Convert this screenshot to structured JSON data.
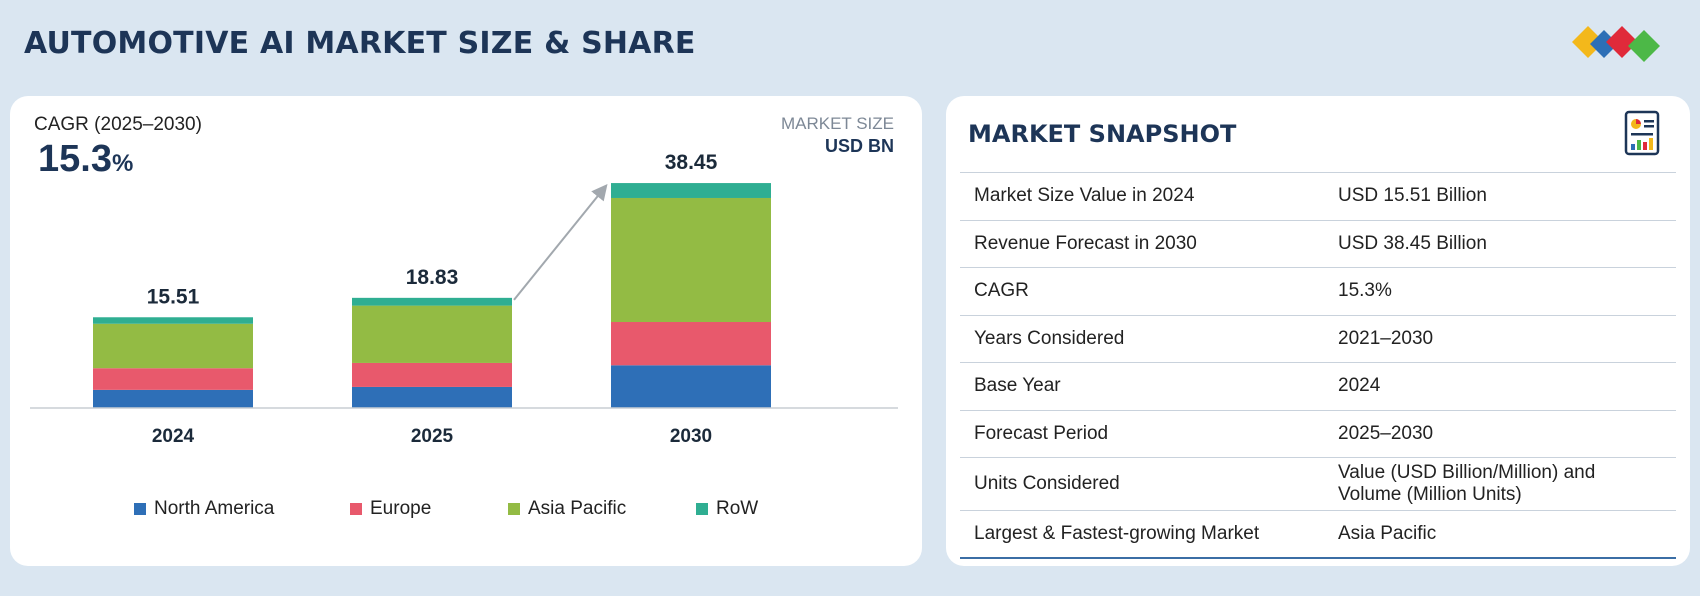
{
  "page": {
    "title": "AUTOMOTIVE AI MARKET SIZE & SHARE"
  },
  "colors": {
    "north_america": "#2e6fb7",
    "europe": "#e8596c",
    "asia_pacific": "#93bb44",
    "row": "#2fae92",
    "title": "#1d3557"
  },
  "header_left": {
    "cagr_label": "CAGR (2025–2030)",
    "cagr_number": "15.3",
    "cagr_pct": "%"
  },
  "header_right": {
    "label": "MARKET SIZE",
    "unit": "USD BN"
  },
  "chart_data": {
    "type": "bar",
    "stacked": true,
    "categories": [
      "2024",
      "2025",
      "2030"
    ],
    "totals": [
      15.51,
      18.83,
      38.45
    ],
    "total_labels": [
      "15.51",
      "18.83",
      "38.45"
    ],
    "series": [
      {
        "name": "North America",
        "values": [
          3.1,
          3.6,
          7.3
        ]
      },
      {
        "name": "Europe",
        "values": [
          3.7,
          4.1,
          7.4
        ]
      },
      {
        "name": "Asia Pacific",
        "values": [
          7.6,
          9.8,
          21.2
        ]
      },
      {
        "name": "RoW",
        "values": [
          1.11,
          1.33,
          2.55
        ]
      }
    ],
    "ylim": [
      0,
      40
    ],
    "grid": false,
    "legend": "bottom",
    "annotations": [
      "growth-arrow 2025→2030"
    ]
  },
  "snapshot": {
    "title": "MARKET SNAPSHOT",
    "icon": "report-icon",
    "rows": [
      {
        "key": "Market Size Value in 2024",
        "value": "USD 15.51 Billion"
      },
      {
        "key": "Revenue Forecast in 2030",
        "value": "USD 38.45 Billion"
      },
      {
        "key": "CAGR",
        "value": "15.3%"
      },
      {
        "key": "Years Considered",
        "value": "2021–2030"
      },
      {
        "key": "Base Year",
        "value": "2024"
      },
      {
        "key": "Forecast Period",
        "value": "2025–2030"
      },
      {
        "key": "Units Considered",
        "value_line1": "Value (USD Billion/Million) and",
        "value_line2": "Volume (Million Units)"
      },
      {
        "key": "Largest & Fastest-growing Market",
        "value": "Asia Pacific"
      }
    ]
  }
}
